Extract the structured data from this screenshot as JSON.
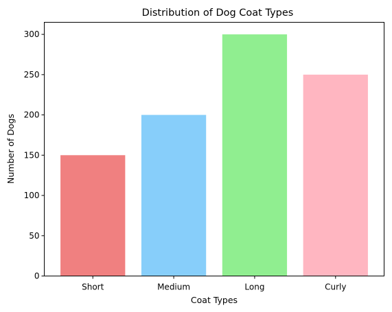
{
  "chart_data": {
    "type": "bar",
    "title": "Distribution of Dog Coat Types",
    "xlabel": "Coat Types",
    "ylabel": "Number of Dogs",
    "categories": [
      "Short",
      "Medium",
      "Long",
      "Curly"
    ],
    "values": [
      150,
      200,
      300,
      250
    ],
    "colors": [
      "#f08080",
      "#87cefa",
      "#90ee90",
      "#ffb6c1"
    ],
    "ylim": [
      0,
      315
    ],
    "yticks": [
      0,
      50,
      100,
      150,
      200,
      250,
      300
    ],
    "grid": false,
    "legend": false
  }
}
